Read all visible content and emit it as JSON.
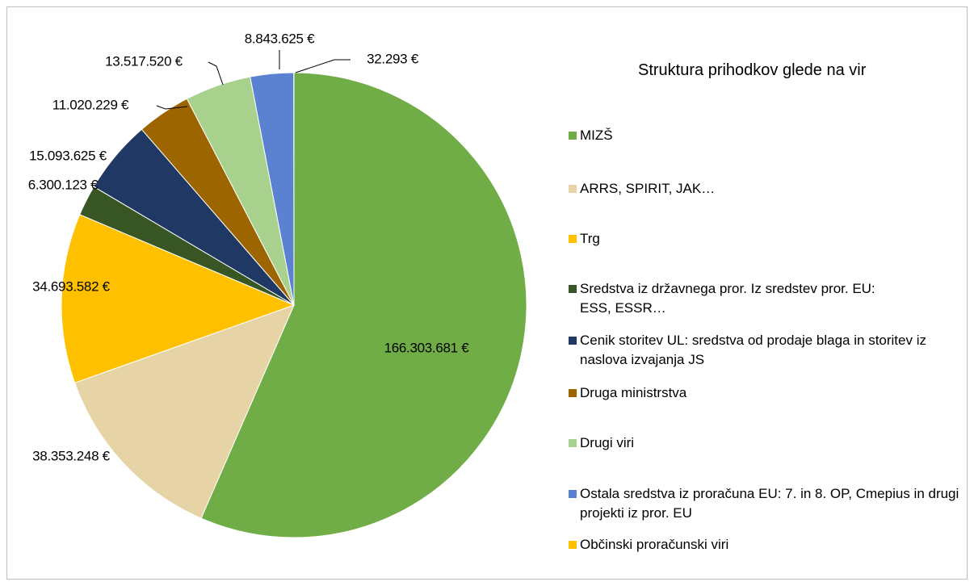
{
  "chart_data": {
    "type": "pie",
    "title": "Struktura prihodkov glede na vir",
    "categories": [
      "MIZŠ",
      "ARRS, SPIRIT, JAK…",
      "Trg",
      "Sredstva iz državnega pror. Iz sredstev pror. EU: ESS, ESSR…",
      "Cenik storitev UL: sredstva od prodaje blaga in storitev iz naslova izvajanja JS",
      "Druga ministrstva",
      "Drugi viri",
      "Ostala sredstva iz proračuna EU: 7. in 8. OP, Cmepius in drugi projekti iz pror. EU",
      "Občinski proračunski viri"
    ],
    "values": [
      166303681,
      38353248,
      34693582,
      6300123,
      15093625,
      11020229,
      13517520,
      8843625,
      32293
    ],
    "value_labels": [
      "166.303.681 €",
      "38.353.248 €",
      "34.693.582 €",
      "6.300.123 €",
      "15.093.625 €",
      "11.020.229 €",
      "13.517.520 €",
      "8.843.625 €",
      "32.293 €"
    ],
    "colors": [
      "#70ad47",
      "#e6d3a6",
      "#ffc000",
      "#375623",
      "#203864",
      "#9c6500",
      "#a9d18e",
      "#5b82d0",
      "#ffc000"
    ],
    "legend": "right"
  }
}
